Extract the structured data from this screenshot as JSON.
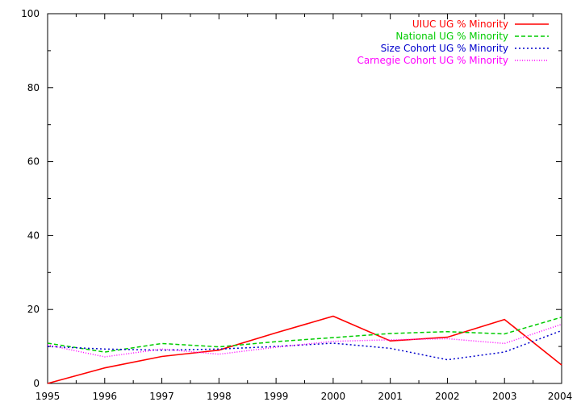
{
  "chart_data": {
    "type": "line",
    "title": "",
    "xlabel": "",
    "ylabel": "",
    "x": [
      1995,
      1996,
      1997,
      1998,
      1999,
      2000,
      2001,
      2002,
      2003,
      2004
    ],
    "xlim": [
      1995,
      2004
    ],
    "ylim": [
      0,
      100
    ],
    "xticks": [
      "1995",
      "1996",
      "1997",
      "1998",
      "1999",
      "2000",
      "2001",
      "2002",
      "2003",
      "2004"
    ],
    "yticks": [
      "0",
      "20",
      "40",
      "60",
      "80",
      "100"
    ],
    "grid": false,
    "legend_position": "top-right",
    "series": [
      {
        "name": "UIUC UG % Minority",
        "color": "#ff0000",
        "dash": "solid",
        "values": [
          0,
          4.2,
          7.3,
          9.0,
          13.7,
          18.2,
          11.5,
          12.5,
          17.3,
          5.0
        ]
      },
      {
        "name": "National UG % Minority",
        "color": "#00cc00",
        "dash": "dashed",
        "values": [
          10.9,
          8.5,
          10.8,
          9.9,
          11.3,
          12.4,
          13.5,
          14.0,
          13.4,
          17.9
        ]
      },
      {
        "name": "Size Cohort UG % Minority",
        "color": "#0000cc",
        "dash": "dotted",
        "values": [
          10.0,
          9.3,
          9.0,
          9.3,
          10.0,
          10.9,
          9.5,
          6.4,
          8.5,
          14.3
        ]
      },
      {
        "name": "Carnegie Cohort UG % Minority",
        "color": "#ff00ff",
        "dash": "dense-dotted",
        "values": [
          10.4,
          7.2,
          9.3,
          7.9,
          9.8,
          11.4,
          11.8,
          12.1,
          10.8,
          16.0
        ]
      }
    ]
  }
}
